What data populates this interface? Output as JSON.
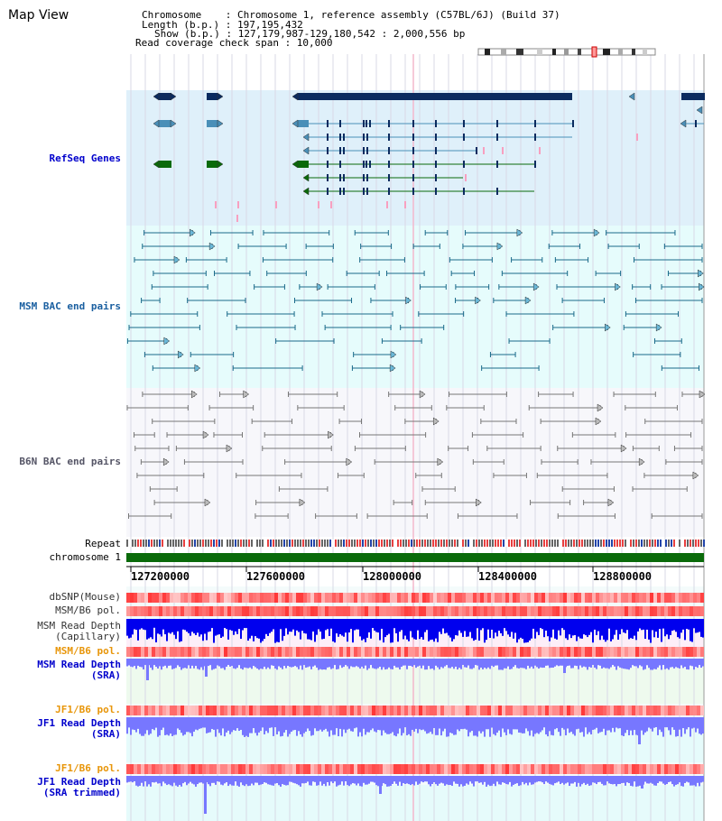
{
  "header": {
    "title": "Map View",
    "info_lines": [
      "Chromosome    : Chromosome 1, reference assembly (C57BL/6J) (Build 37)",
      "Length (b.p.) : 197,195,432",
      "Show (b.p.) : 127,179,987-129,180,542 : 2,000,556 bp",
      "Read coverage check span : 10,000"
    ]
  },
  "tracks": {
    "refseq": "RefSeq Genes",
    "msm_bac": "MSM BAC end pairs",
    "b6n_bac": "B6N BAC end pairs",
    "repeat": "Repeat",
    "chromosome": "chromosome 1",
    "dbsnp": "dbSNP(Mouse)",
    "msm_b6_pol_1": "MSM/B6 pol.",
    "msm_read_depth_cap": "MSM Read Depth\n(Capillary)",
    "msm_b6_pol_2": "MSM/B6 pol.",
    "msm_read_depth_sra": "MSM Read Depth\n(SRA)",
    "jf1_b6_pol_1": "JF1/B6 pol.",
    "jf1_read_depth_sra": "JF1 Read Depth\n(SRA)",
    "jf1_b6_pol_2": "JF1/B6 pol.",
    "jf1_read_depth_trim": "JF1 Read Depth\n(SRA trimmed)"
  },
  "axis": {
    "ticks": [
      "127200000",
      "127600000",
      "128000000",
      "128400000",
      "128800000"
    ]
  },
  "colors": {
    "refseq_bg": "#dff0fa",
    "msm_bg": "#e6fcfc",
    "b6n_bg": "#f7f7fb",
    "gene_navy": "#0b2b5f",
    "gene_steel": "#4a8fb8",
    "gene_green": "#0a6a0a",
    "chrom_green": "#0a6a0a",
    "depth_blue": "#0000ee",
    "depth_light": "#7777ff",
    "pol_red": "#f05050",
    "label_blue": "#0000cc",
    "label_orange": "#e8960a"
  }
}
